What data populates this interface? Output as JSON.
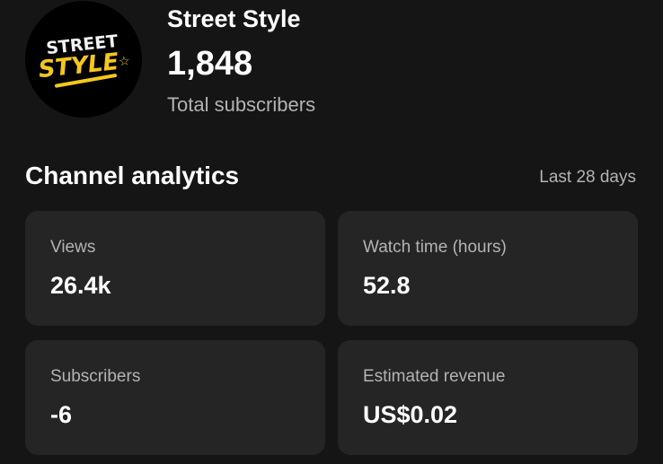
{
  "channel": {
    "logo_text": [
      "STREET",
      "STYLE"
    ],
    "name": "Street Style",
    "subscriber_count": "1,848",
    "subscriber_label": "Total subscribers"
  },
  "analytics": {
    "title": "Channel analytics",
    "period": "Last 28 days",
    "cards": [
      {
        "label": "Views",
        "value": "26.4k"
      },
      {
        "label": "Watch time (hours)",
        "value": "52.8"
      },
      {
        "label": "Subscribers",
        "value": "-6"
      },
      {
        "label": "Estimated revenue",
        "value": "US$0.02"
      }
    ]
  },
  "colors": {
    "background": "#151515",
    "card": "#252525",
    "logo_accent": "#f4c81c"
  }
}
